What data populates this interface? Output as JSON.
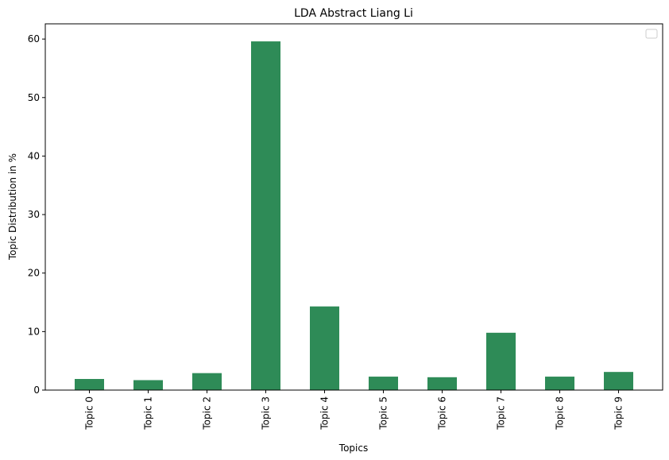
{
  "chart_data": {
    "type": "bar",
    "title": "LDA Abstract Liang Li",
    "xlabel": "Topics",
    "ylabel": "Topic Distribution in %",
    "categories": [
      "Topic 0",
      "Topic 1",
      "Topic 2",
      "Topic 3",
      "Topic 4",
      "Topic 5",
      "Topic 6",
      "Topic 7",
      "Topic 8",
      "Topic 9"
    ],
    "values": [
      1.9,
      1.7,
      2.9,
      59.6,
      14.3,
      2.3,
      2.2,
      9.8,
      2.3,
      3.1
    ],
    "ylim": [
      0,
      62.6
    ],
    "yticks": [
      0,
      10,
      20,
      30,
      40,
      50,
      60
    ],
    "grid": false,
    "legend": {
      "placement": "top-right",
      "entries": []
    },
    "colors": {
      "bar": "#2e8b57",
      "axis": "#000000"
    }
  }
}
